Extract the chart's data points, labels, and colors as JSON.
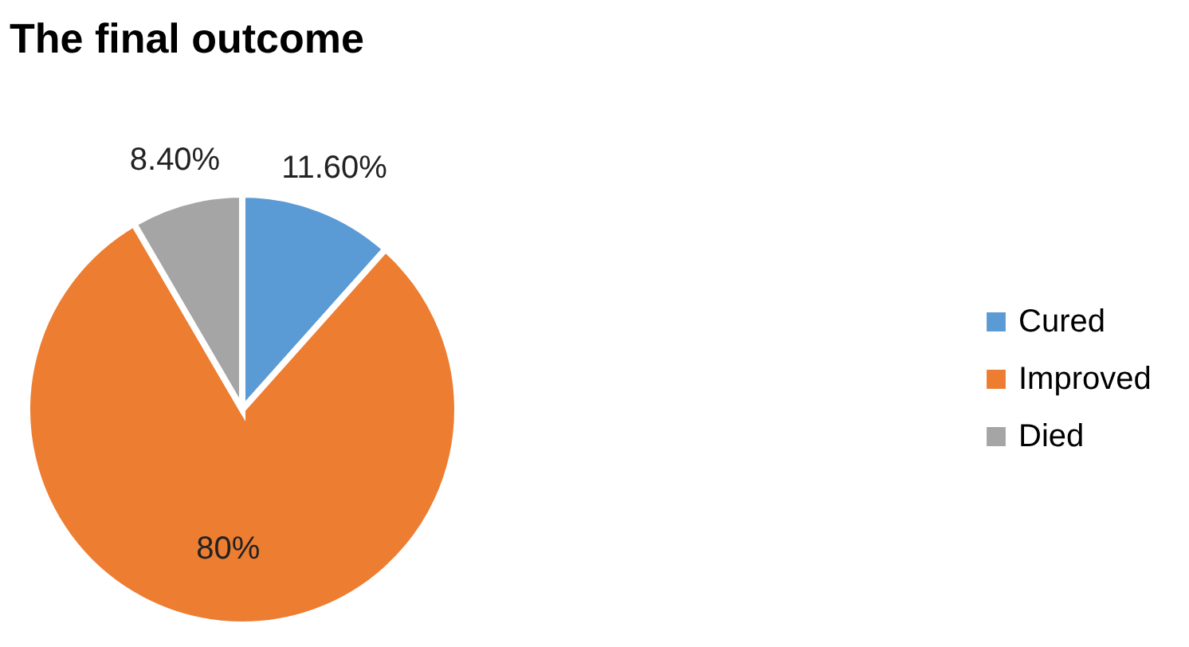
{
  "chart_data": {
    "type": "pie",
    "title": "The final outcome",
    "categories": [
      "Cured",
      "Improved",
      "Died"
    ],
    "values": [
      11.6,
      80,
      8.4
    ],
    "colors": [
      "#5b9bd5",
      "#ed7d31",
      "#a5a5a5"
    ],
    "value_labels": [
      "11.60%",
      "80%",
      "8.40%"
    ],
    "legend": "right"
  }
}
